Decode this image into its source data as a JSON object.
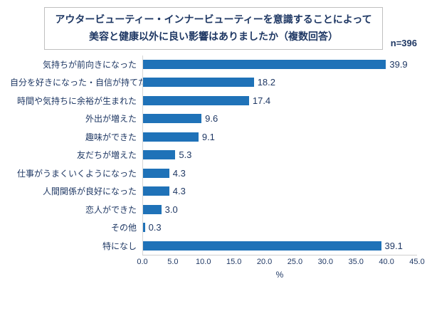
{
  "title": {
    "line1": "アウタービューティー・インナービューティーを意識することによって",
    "line2": "美容と健康以外に良い影響はありましたか（複数回答）",
    "n_label": "n=396"
  },
  "chart_data": {
    "type": "bar",
    "orientation": "horizontal",
    "title": "アウタービューティー・インナービューティーを意識することによって美容と健康以外に良い影響はありましたか（複数回答）",
    "sample_size": "n=396",
    "categories": [
      "気持ちが前向きになった",
      "自分を好きになった・自信が持てた",
      "時間や気持ちに余裕が生まれた",
      "外出が増えた",
      "趣味ができた",
      "友だちが増えた",
      "仕事がうまくいくようになった",
      "人間関係が良好になった",
      "恋人ができた",
      "その他",
      "特になし"
    ],
    "values": [
      39.9,
      18.2,
      17.4,
      9.6,
      9.1,
      5.3,
      4.3,
      4.3,
      3.0,
      0.3,
      39.1
    ],
    "xlabel": "%",
    "ylabel": "",
    "xlim": [
      0,
      45
    ],
    "xticks": [
      "0.0",
      "5.0",
      "10.0",
      "15.0",
      "20.0",
      "25.0",
      "30.0",
      "35.0",
      "40.0",
      "45.0"
    ],
    "grid": false,
    "legend": "none",
    "bar_color": "#1F72B8",
    "text_color": "#1F3864"
  }
}
